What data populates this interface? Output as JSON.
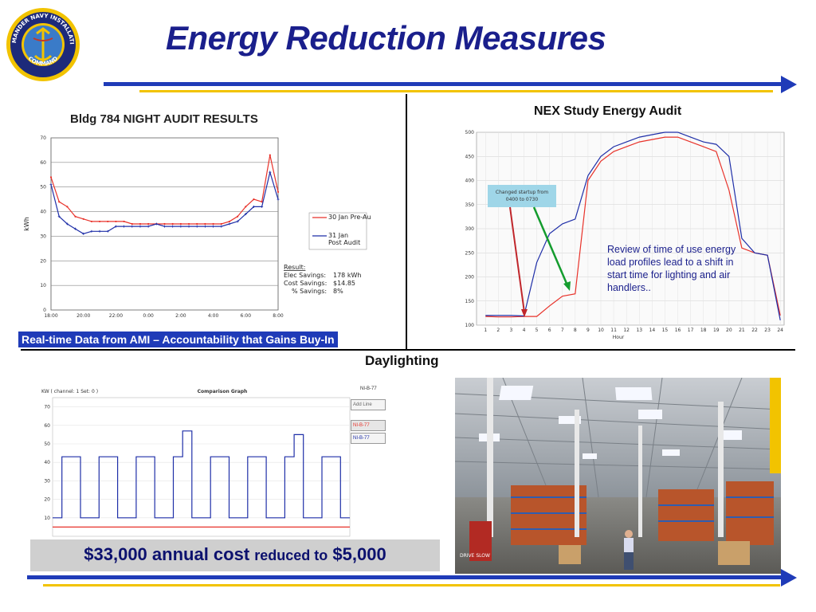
{
  "page": {
    "title": "Energy Reduction Measures"
  },
  "logo": {
    "top_text": "COMMANDER NAVY INSTALLATIONS",
    "bottom_text": "COMMAND"
  },
  "left_chart": {
    "title": "Bldg 784 NIGHT AUDIT RESULTS",
    "ylabel": "kWh",
    "y_ticks": [
      "0",
      "10",
      "20",
      "30",
      "40",
      "50",
      "60",
      "70"
    ],
    "x_ticks": [
      "18:00",
      "20:00",
      "22:00",
      "0:00",
      "2:00",
      "4:00",
      "6:00",
      "8:00"
    ],
    "legend": [
      "30 Jan Pre-Audit",
      "31 Jan Post Audit"
    ],
    "result": {
      "heading": "Result:",
      "rows": [
        {
          "label": "Elec Savings:",
          "value": "178 kWh"
        },
        {
          "label": "Cost Savings:",
          "value": "$14.85"
        },
        {
          "label": "% Savings:",
          "value": "8%"
        }
      ]
    },
    "caption": "Real-time Data from AMI – Accountability that Gains Buy-In"
  },
  "right_chart": {
    "title": "NEX Study Energy Audit",
    "y_ticks": [
      "100",
      "150",
      "200",
      "250",
      "300",
      "350",
      "400",
      "450",
      "500"
    ],
    "x_ticks": [
      "1",
      "2",
      "3",
      "4",
      "5",
      "6",
      "7",
      "8",
      "9",
      "10",
      "11",
      "12",
      "13",
      "14",
      "15",
      "16",
      "17",
      "18",
      "19",
      "20",
      "21",
      "22",
      "23",
      "24"
    ],
    "xlabel": "Hour",
    "callout": "Changed startup from 0400 to 0730",
    "note": "Review of time of use energy load profiles lead to a shift in start time for lighting and air handlers.."
  },
  "daylight_section": {
    "title": "Daylighting"
  },
  "bottom_chart": {
    "header_left": "KW ( channel: 1 Set: 0 )",
    "title": "Comparison Graph",
    "header_right": "NI-B-77",
    "y_ticks": [
      "10",
      "20",
      "30",
      "40",
      "50",
      "60",
      "70"
    ],
    "buttons": [
      "Add Line",
      "NI-B-77",
      "NI-B-77"
    ],
    "banner_main_1": "$33,000 annual cost",
    "banner_small": "reduced to",
    "banner_main_2": "$5,000"
  },
  "photo": {
    "sign_text": "DRIVE SLOW"
  },
  "colors": {
    "accent": "#1f3bb8",
    "gold": "#f2c300",
    "title": "#1a1f8c",
    "pre": "#e8322a",
    "post": "#1f2fa8"
  },
  "chart_data": [
    {
      "type": "line",
      "title": "Bldg 784 NIGHT AUDIT RESULTS",
      "ylabel": "kWh",
      "ylim": [
        0,
        70
      ],
      "x": [
        "18:00",
        "18:30",
        "19:00",
        "19:30",
        "20:00",
        "20:30",
        "21:00",
        "21:30",
        "22:00",
        "22:30",
        "23:00",
        "23:30",
        "0:00",
        "0:30",
        "1:00",
        "1:30",
        "2:00",
        "2:30",
        "3:00",
        "3:30",
        "4:00",
        "4:30",
        "5:00",
        "5:30",
        "6:00",
        "6:30",
        "7:00",
        "7:30",
        "8:00"
      ],
      "series": [
        {
          "name": "30 Jan Pre-Audit",
          "values": [
            54,
            44,
            42,
            38,
            37,
            36,
            36,
            36,
            36,
            36,
            35,
            35,
            35,
            35,
            35,
            35,
            35,
            35,
            35,
            35,
            35,
            35,
            36,
            38,
            42,
            45,
            44,
            63,
            48
          ]
        },
        {
          "name": "31 Jan Post Audit",
          "values": [
            51,
            38,
            35,
            33,
            31,
            32,
            32,
            32,
            34,
            34,
            34,
            34,
            34,
            35,
            34,
            34,
            34,
            34,
            34,
            34,
            34,
            34,
            35,
            36,
            39,
            42,
            42,
            56,
            45
          ]
        }
      ],
      "grid": true,
      "legend": "right"
    },
    {
      "type": "line",
      "title": "NEX Study Energy Audit",
      "xlabel": "Hour",
      "ylim": [
        100,
        500
      ],
      "x": [
        1,
        2,
        3,
        4,
        5,
        6,
        7,
        8,
        9,
        10,
        11,
        12,
        13,
        14,
        15,
        16,
        17,
        18,
        19,
        20,
        21,
        22,
        23,
        24
      ],
      "series": [
        {
          "values": [
            118,
            117,
            117,
            118,
            118,
            140,
            160,
            165,
            400,
            440,
            460,
            470,
            480,
            485,
            490,
            490,
            480,
            470,
            460,
            380,
            260,
            250,
            245,
            120
          ]
        },
        {
          "values": [
            120,
            120,
            120,
            119,
            230,
            290,
            310,
            320,
            410,
            450,
            470,
            480,
            490,
            495,
            500,
            500,
            490,
            480,
            475,
            450,
            280,
            250,
            245,
            110
          ]
        }
      ],
      "grid": true
    },
    {
      "type": "line",
      "title": "Comparison Graph",
      "ylim": [
        0,
        75
      ],
      "x": [
        1,
        2,
        3,
        4,
        5,
        6,
        7,
        8,
        9,
        10,
        11,
        12,
        13,
        14,
        15,
        16,
        17,
        18,
        19,
        20,
        21,
        22,
        23,
        24,
        25,
        26,
        27,
        28,
        29,
        30,
        31,
        32
      ],
      "series": [
        {
          "values": [
            10,
            43,
            43,
            10,
            10,
            43,
            43,
            10,
            10,
            43,
            43,
            10,
            10,
            43,
            57,
            10,
            10,
            43,
            43,
            10,
            10,
            43,
            43,
            10,
            10,
            43,
            55,
            10,
            10,
            43,
            43,
            10
          ]
        },
        {
          "values": [
            5,
            5,
            5,
            5,
            5,
            5,
            5,
            5,
            5,
            5,
            5,
            5,
            5,
            5,
            5,
            5,
            5,
            5,
            5,
            5,
            5,
            5,
            5,
            5,
            5,
            5,
            5,
            5,
            5,
            5,
            5,
            5
          ]
        }
      ],
      "grid": true
    }
  ]
}
